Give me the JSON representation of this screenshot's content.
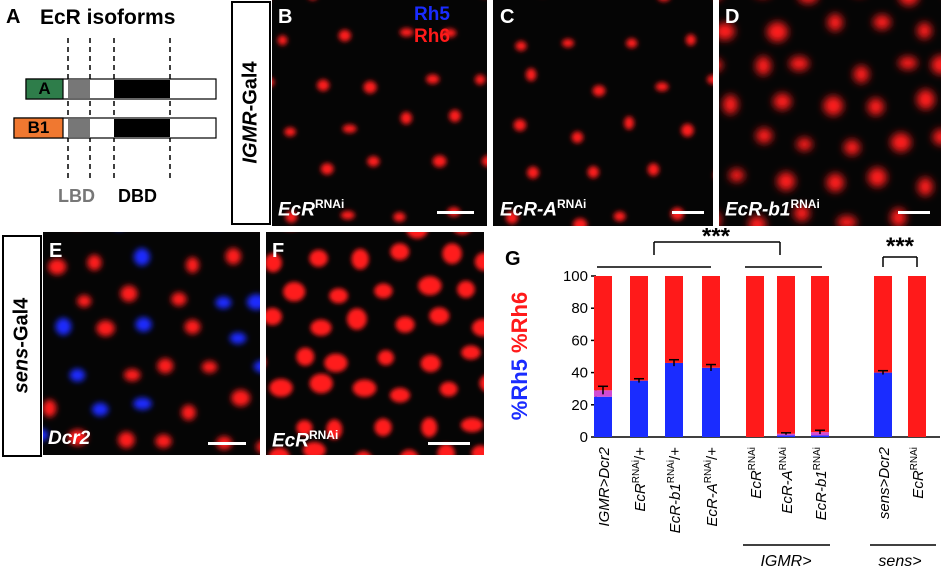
{
  "panelA": {
    "letter": "A",
    "title": "EcR isoforms",
    "isoforms": [
      {
        "label": "A",
        "color": "#2e7d4a"
      },
      {
        "label": "B1",
        "color": "#f07830"
      }
    ],
    "lbd": "LBD",
    "dbd": "DBD"
  },
  "top_row": {
    "driver_prefix": "IGMR",
    "driver_suffix": "-Gal4",
    "legend_rh5": "Rh5",
    "legend_rh6": "Rh6",
    "rh5_color": "#1a2cff",
    "rh6_color": "#ff1a1a",
    "panels": [
      {
        "letter": "B",
        "geno": "EcR",
        "sup": "RNAi"
      },
      {
        "letter": "C",
        "geno": "EcR-A",
        "sup": "RNAi"
      },
      {
        "letter": "D",
        "geno": "EcR-b1",
        "sup": "RNAi"
      }
    ]
  },
  "bottom_row": {
    "driver_prefix": "sens",
    "driver_suffix": "-Gal4",
    "panels": [
      {
        "letter": "E",
        "geno": "Dcr2",
        "sup": ""
      },
      {
        "letter": "F",
        "geno": "EcR",
        "sup": "RNAi"
      }
    ]
  },
  "panelG": {
    "letter": "G",
    "ylabel_rh5": "%Rh5",
    "ylabel_rh6": "%Rh6",
    "sig1": "***",
    "sig2": "***",
    "group1": "IGMR>",
    "group2": "sens>"
  },
  "chart_data": {
    "type": "bar",
    "stacked": true,
    "ylim": [
      0,
      100
    ],
    "yticks": [
      0,
      20,
      40,
      60,
      80,
      100
    ],
    "categories": [
      {
        "main": "IGMR>Dcr2",
        "sup": "",
        "tail": ""
      },
      {
        "main": "EcR",
        "sup": "RNAi",
        "tail": "/+"
      },
      {
        "main": "EcR-b1",
        "sup": "RNAi",
        "tail": "/+"
      },
      {
        "main": "EcR-A",
        "sup": "RNAi",
        "tail": "/+"
      },
      {
        "main": "EcR",
        "sup": "RNAi",
        "tail": ""
      },
      {
        "main": "EcR-A",
        "sup": "RNAi",
        "tail": ""
      },
      {
        "main": "EcR-b1",
        "sup": "RNAi",
        "tail": ""
      },
      {
        "main": "sens>Dcr2",
        "sup": "",
        "tail": ""
      },
      {
        "main": "EcR",
        "sup": "RNAi",
        "tail": ""
      }
    ],
    "series": [
      {
        "name": "Rh5",
        "color": "#1a2cff",
        "values": [
          25,
          35,
          46,
          43,
          0,
          1,
          1,
          40,
          0
        ]
      },
      {
        "name": "Rh5+Rh6",
        "color": "#d24bd2",
        "values": [
          4,
          0,
          0,
          0,
          0,
          1,
          2,
          0,
          0
        ]
      },
      {
        "name": "Rh6",
        "color": "#ff1a1a",
        "values": [
          71,
          65,
          54,
          57,
          100,
          98,
          97,
          60,
          100
        ]
      }
    ],
    "errors": [
      2.5,
      1.2,
      2.0,
      2.0,
      0,
      0.6,
      1.2,
      1.2,
      0
    ]
  }
}
